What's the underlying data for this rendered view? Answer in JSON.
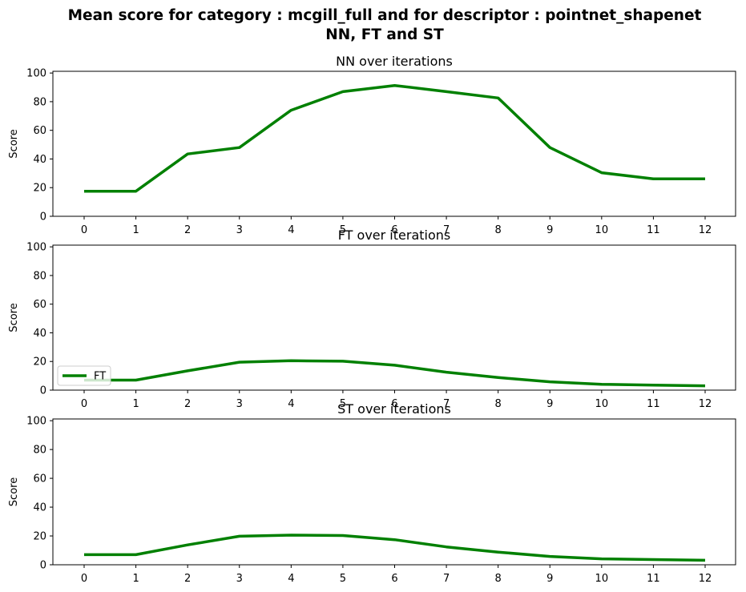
{
  "figure": {
    "title_line1": "Mean score for category : mcgill_full and for descriptor : pointnet_shapenet",
    "title_line2": "NN, FT and ST"
  },
  "chart_data": [
    {
      "type": "line",
      "title": "NN over iterations",
      "xlabel": "",
      "ylabel": "Score",
      "x": [
        0,
        1,
        2,
        3,
        4,
        5,
        6,
        7,
        8,
        9,
        10,
        11,
        12
      ],
      "ylim": [
        0,
        100
      ],
      "yticks": [
        0,
        20,
        40,
        60,
        80,
        100
      ],
      "series": [
        {
          "values": [
            17.5,
            17.5,
            43.5,
            48,
            74,
            87,
            91.3,
            87,
            82.6,
            48,
            30.4,
            26.1,
            26.1
          ],
          "color": "#008000"
        }
      ],
      "legend": null
    },
    {
      "type": "line",
      "title": "FT over iterations",
      "xlabel": "",
      "ylabel": "Score",
      "x": [
        0,
        1,
        2,
        3,
        4,
        5,
        6,
        7,
        8,
        9,
        10,
        11,
        12
      ],
      "ylim": [
        0,
        100
      ],
      "yticks": [
        0,
        20,
        40,
        60,
        80,
        100
      ],
      "series": [
        {
          "name": "FT",
          "values": [
            7,
            7,
            13.5,
            19.5,
            20.5,
            20.2,
            17.4,
            12.5,
            8.8,
            5.8,
            4.1,
            3.5,
            3
          ],
          "color": "#008000"
        }
      ],
      "legend": "lower left"
    },
    {
      "type": "line",
      "title": "ST over iterations",
      "xlabel": "",
      "ylabel": "Score",
      "x": [
        0,
        1,
        2,
        3,
        4,
        5,
        6,
        7,
        8,
        9,
        10,
        11,
        12
      ],
      "ylim": [
        0,
        100
      ],
      "yticks": [
        0,
        20,
        40,
        60,
        80,
        100
      ],
      "series": [
        {
          "values": [
            7,
            7,
            13.8,
            19.8,
            20.6,
            20.3,
            17.4,
            12.4,
            8.8,
            5.8,
            4.1,
            3.6,
            3.1
          ],
          "color": "#008000"
        }
      ],
      "legend": null
    }
  ]
}
